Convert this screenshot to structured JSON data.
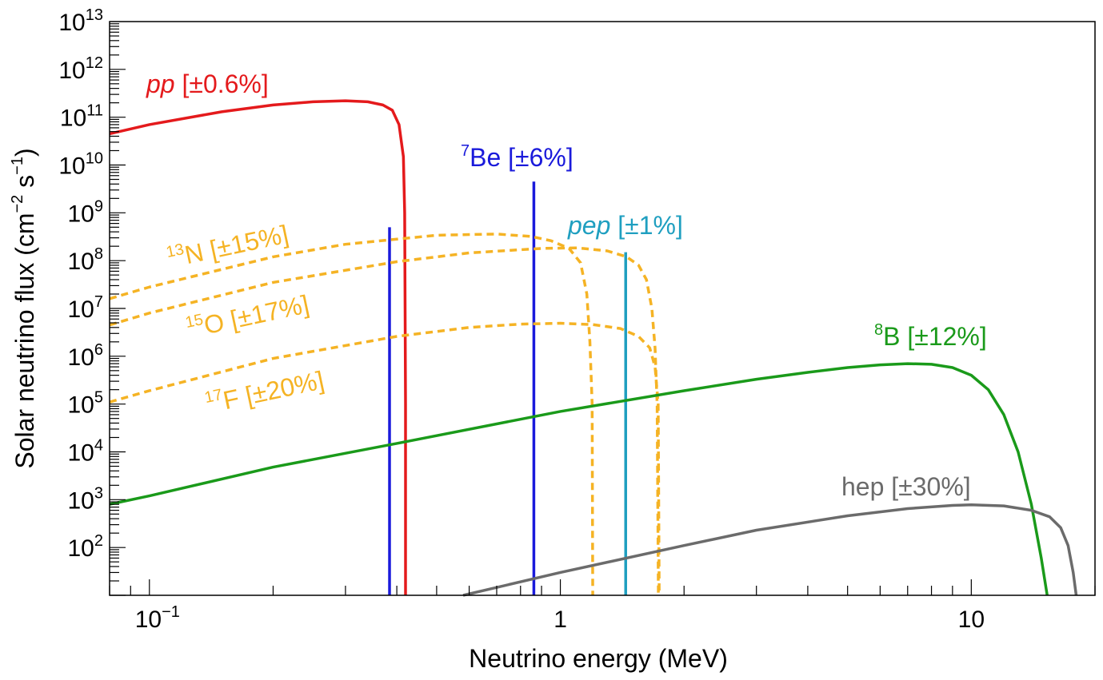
{
  "chart_data": {
    "type": "line",
    "xlabel": "Neutrino energy (MeV)",
    "ylabel_main": "Solar neutrino flux (cm",
    "ylabel_exp1": "−2",
    "ylabel_mid": " s",
    "ylabel_exp2": "−1",
    "ylabel_end": ")",
    "x_scale": "log",
    "y_scale": "log",
    "xlim": [
      0.08,
      20
    ],
    "ylim": [
      10,
      10000000000000.0
    ],
    "x_ticks": [
      {
        "value": 0.1,
        "base": "10",
        "exp": "−1"
      },
      {
        "value": 1,
        "base": "1",
        "exp": ""
      },
      {
        "value": 10,
        "base": "10",
        "exp": ""
      }
    ],
    "y_ticks": [
      {
        "value": 100,
        "base": "10",
        "exp": "2"
      },
      {
        "value": 1000,
        "base": "10",
        "exp": "3"
      },
      {
        "value": 10000,
        "base": "10",
        "exp": "4"
      },
      {
        "value": 100000,
        "base": "10",
        "exp": "5"
      },
      {
        "value": 1000000,
        "base": "10",
        "exp": "6"
      },
      {
        "value": 10000000,
        "base": "10",
        "exp": "7"
      },
      {
        "value": 100000000,
        "base": "10",
        "exp": "8"
      },
      {
        "value": 1000000000,
        "base": "10",
        "exp": "9"
      },
      {
        "value": 10000000000,
        "base": "10",
        "exp": "10"
      },
      {
        "value": 100000000000,
        "base": "10",
        "exp": "11"
      },
      {
        "value": 1000000000000,
        "base": "10",
        "exp": "12"
      },
      {
        "value": 10000000000000,
        "base": "10",
        "exp": "13"
      }
    ],
    "grid": false,
    "series": [
      {
        "key": "pp",
        "prefix": "",
        "iso": "",
        "name": "pp",
        "unc": "[±0.6%]",
        "italic": true,
        "color": "#e41a1c",
        "style": "solid",
        "points": [
          [
            0.08,
            45000000000.0
          ],
          [
            0.1,
            70000000000.0
          ],
          [
            0.15,
            130000000000.0
          ],
          [
            0.2,
            180000000000.0
          ],
          [
            0.25,
            210000000000.0
          ],
          [
            0.3,
            220000000000.0
          ],
          [
            0.34,
            210000000000.0
          ],
          [
            0.37,
            180000000000.0
          ],
          [
            0.39,
            140000000000.0
          ],
          [
            0.405,
            70000000000.0
          ],
          [
            0.415,
            15000000000.0
          ],
          [
            0.418,
            1000000000.0
          ],
          [
            0.419,
            10000000.0
          ],
          [
            0.42,
            100000.0
          ],
          [
            0.42,
            10
          ]
        ]
      },
      {
        "key": "be7_low",
        "prefix": "",
        "iso": "",
        "name": "",
        "unc": "",
        "italic": false,
        "color": "#1a1adb",
        "style": "solid",
        "points": [
          [
            0.384,
            10
          ],
          [
            0.384,
            500000000.0
          ]
        ]
      },
      {
        "key": "be7",
        "prefix": "",
        "iso": "7",
        "name": "Be",
        "unc": "[±6%]",
        "italic": false,
        "color": "#1a1adb",
        "style": "solid",
        "points": [
          [
            0.862,
            10
          ],
          [
            0.862,
            4500000000.0
          ]
        ]
      },
      {
        "key": "pep",
        "prefix": "",
        "iso": "",
        "name": "pep",
        "unc": "[±1%]",
        "italic": true,
        "color": "#1f9fc0",
        "style": "solid",
        "points": [
          [
            1.442,
            10
          ],
          [
            1.442,
            150000000.0
          ]
        ]
      },
      {
        "key": "n13",
        "prefix": "",
        "iso": "13",
        "name": "N",
        "unc": "[±15%]",
        "italic": false,
        "color": "#f5b324",
        "style": "dashed",
        "points": [
          [
            0.08,
            16000000.0
          ],
          [
            0.1,
            28000000.0
          ],
          [
            0.2,
            120000000.0
          ],
          [
            0.3,
            220000000.0
          ],
          [
            0.5,
            340000000.0
          ],
          [
            0.7,
            360000000.0
          ],
          [
            0.85,
            320000000.0
          ],
          [
            0.95,
            260000000.0
          ],
          [
            1.05,
            180000000.0
          ],
          [
            1.12,
            90000000.0
          ],
          [
            1.16,
            20000000.0
          ],
          [
            1.18,
            2000000.0
          ],
          [
            1.195,
            100000.0
          ],
          [
            1.199,
            10
          ]
        ]
      },
      {
        "key": "o15",
        "prefix": "",
        "iso": "15",
        "name": "O",
        "unc": "[±17%]",
        "italic": false,
        "color": "#f5b324",
        "style": "dashed",
        "points": [
          [
            0.08,
            4500000.0
          ],
          [
            0.1,
            8000000.0
          ],
          [
            0.2,
            35000000.0
          ],
          [
            0.4,
            95000000.0
          ],
          [
            0.6,
            145000000.0
          ],
          [
            0.9,
            180000000.0
          ],
          [
            1.1,
            185000000.0
          ],
          [
            1.3,
            160000000.0
          ],
          [
            1.45,
            120000000.0
          ],
          [
            1.55,
            80000000.0
          ],
          [
            1.62,
            40000000.0
          ],
          [
            1.67,
            10000000.0
          ],
          [
            1.7,
            1500000.0
          ],
          [
            1.72,
            100000.0
          ],
          [
            1.732,
            10
          ]
        ]
      },
      {
        "key": "f17",
        "prefix": "",
        "iso": "17",
        "name": "F",
        "unc": "[±20%]",
        "italic": false,
        "color": "#f5b324",
        "style": "dashed",
        "points": [
          [
            0.08,
            110000.0
          ],
          [
            0.1,
            190000.0
          ],
          [
            0.2,
            900000.0
          ],
          [
            0.4,
            2600000.0
          ],
          [
            0.6,
            4000000.0
          ],
          [
            0.8,
            4700000.0
          ],
          [
            1.0,
            4900000.0
          ],
          [
            1.2,
            4600000.0
          ],
          [
            1.4,
            3800000.0
          ],
          [
            1.55,
            2600000.0
          ],
          [
            1.65,
            1500000.0
          ],
          [
            1.7,
            600000.0
          ],
          [
            1.73,
            100000.0
          ],
          [
            1.74,
            10
          ]
        ]
      },
      {
        "key": "b8",
        "prefix": "",
        "iso": "8",
        "name": "B",
        "unc": "[±12%]",
        "italic": false,
        "color": "#1a9a1a",
        "style": "solid",
        "points": [
          [
            0.08,
            800
          ],
          [
            0.1,
            1200
          ],
          [
            0.2,
            4800
          ],
          [
            0.4,
            15000.0
          ],
          [
            1,
            70000.0
          ],
          [
            2,
            190000.0
          ],
          [
            3,
            330000.0
          ],
          [
            4,
            460000.0
          ],
          [
            5,
            580000.0
          ],
          [
            6,
            660000.0
          ],
          [
            7,
            700000.0
          ],
          [
            8,
            680000.0
          ],
          [
            9,
            580000.0
          ],
          [
            10,
            400000.0
          ],
          [
            11,
            200000.0
          ],
          [
            12,
            60000.0
          ],
          [
            13,
            10000.0
          ],
          [
            14,
            800
          ],
          [
            14.8,
            60
          ],
          [
            15.3,
            10
          ]
        ]
      },
      {
        "key": "hep",
        "prefix": "",
        "iso": "",
        "name": "hep",
        "unc": "[±30%]",
        "italic": false,
        "color": "#6b6b6b",
        "style": "solid",
        "points": [
          [
            0.58,
            10
          ],
          [
            1,
            30
          ],
          [
            2,
            110
          ],
          [
            3,
            230
          ],
          [
            5,
            460
          ],
          [
            7,
            650
          ],
          [
            9,
            760
          ],
          [
            10,
            780
          ],
          [
            12,
            740
          ],
          [
            14,
            600
          ],
          [
            15.5,
            440
          ],
          [
            16.5,
            260
          ],
          [
            17.2,
            110
          ],
          [
            17.7,
            30
          ],
          [
            18.0,
            10
          ]
        ]
      }
    ]
  }
}
